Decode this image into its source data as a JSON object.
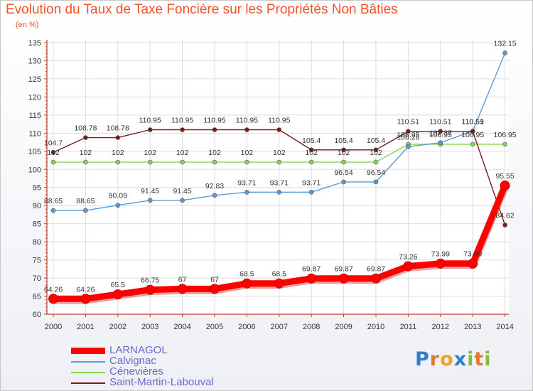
{
  "header": {
    "title": "Evolution du Taux de Taxe Foncière sur les Propriétés Non Bâties",
    "unit": "(en %)"
  },
  "logo": {
    "letters": [
      "P",
      "r",
      "o",
      "x",
      "i",
      "t",
      "i"
    ],
    "colors": [
      "#2f80c9",
      "#e8762a",
      "#f0a22a",
      "#2f80c9",
      "#7fbf3f",
      "#e8762a",
      "#7fbf3f"
    ]
  },
  "chart_data": {
    "type": "line",
    "title": "Evolution du Taux de Taxe Foncière sur les Propriétés Non Bâties",
    "ylabel": "(en %)",
    "xlabel": "",
    "ylim": [
      60,
      135
    ],
    "yticks": [
      "60",
      "65",
      "70",
      "75",
      "80",
      "85",
      "90",
      "95",
      "100",
      "105",
      "110",
      "115",
      "120",
      "125",
      "130",
      "135"
    ],
    "categories": [
      "2000",
      "2001",
      "2002",
      "2003",
      "2004",
      "2005",
      "2006",
      "2007",
      "2008",
      "2009",
      "2010",
      "2011",
      "2012",
      "2013",
      "2014"
    ],
    "series": [
      {
        "name": "LARNAGOL",
        "color": "#ff0000",
        "width": "thick",
        "values": [
          64.26,
          64.26,
          65.5,
          66.75,
          67,
          67,
          68.5,
          68.5,
          69.87,
          69.87,
          69.87,
          73.26,
          73.99,
          73.99,
          95.55
        ],
        "labels": [
          "64.26",
          "64.26",
          "65.5",
          "66.75",
          "67",
          "67",
          "68.5",
          "68.5",
          "69.87",
          "69.87",
          "69.87",
          "73.26",
          "73.99",
          "73.99",
          "95.55"
        ]
      },
      {
        "name": "Calvignac",
        "color": "#5b9bd5",
        "width": "thin",
        "values": [
          88.65,
          88.65,
          90.09,
          91.45,
          91.45,
          92.83,
          93.71,
          93.71,
          93.71,
          96.54,
          96.54,
          106.28,
          107.37,
          110.59,
          132.15
        ],
        "labels": [
          "88.65",
          "88.65",
          "90.09",
          "91.45",
          "91.45",
          "92.83",
          "93.71",
          "93.71",
          "93.71",
          "96.54",
          "96.54",
          "106.28",
          "107.37",
          "110.59",
          "132.15"
        ]
      },
      {
        "name": "Cénevières",
        "color": "#8fd35a",
        "width": "thin",
        "values": [
          102,
          102,
          102,
          102,
          102,
          102,
          102,
          102,
          102,
          102,
          102,
          106.95,
          106.95,
          106.95,
          106.95
        ],
        "labels": [
          "102",
          "102",
          "102",
          "102",
          "102",
          "102",
          "102",
          "102",
          "102",
          "102",
          "102",
          "106.95",
          "106.95",
          "106.95",
          "106.95"
        ]
      },
      {
        "name": "Saint-Martin-Labouval",
        "color": "#7a1c1c",
        "width": "thin",
        "values": [
          104.7,
          108.78,
          108.78,
          110.95,
          110.95,
          110.95,
          110.95,
          110.95,
          105.4,
          105.4,
          105.4,
          110.51,
          110.51,
          110.51,
          84.62
        ],
        "labels": [
          "104.7",
          "108.78",
          "108.78",
          "110.95",
          "110.95",
          "110.95",
          "110.95",
          "110.95",
          "105.4",
          "105.4",
          "105.4",
          "110.51",
          "110.51",
          "110.51",
          "84.62"
        ]
      }
    ],
    "legend": "bottom-left",
    "grid": true
  }
}
